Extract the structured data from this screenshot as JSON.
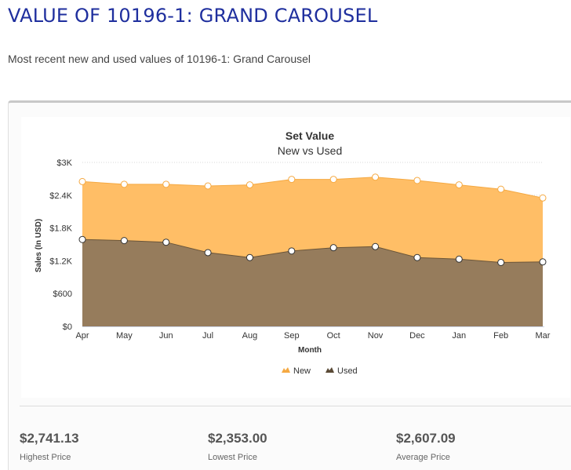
{
  "page": {
    "title": "VALUE OF 10196-1: GRAND CAROUSEL",
    "subtitle": "Most recent new and used values of 10196-1: Grand Carousel"
  },
  "stats": [
    {
      "value": "$2,741.13",
      "label": "Highest Price"
    },
    {
      "value": "$2,353.00",
      "label": "Lowest Price"
    },
    {
      "value": "$2,607.09",
      "label": "Average Price"
    }
  ],
  "colors": {
    "new": "#ffbe66",
    "used": "#967c5c",
    "new_line": "#f5a942",
    "used_line": "#6b5538",
    "grid": "#d8d8d8"
  },
  "chart_data": {
    "type": "area",
    "title": "Set Value",
    "subtitle": "New vs Used",
    "xlabel": "Month",
    "ylabel": "Sales (In USD)",
    "categories": [
      "Apr",
      "May",
      "Jun",
      "Jul",
      "Aug",
      "Sep",
      "Oct",
      "Nov",
      "Dec",
      "Jan",
      "Feb",
      "Mar"
    ],
    "y_ticks": [
      "$0",
      "$600",
      "$1.2K",
      "$1.8K",
      "$2.4K",
      "$3K"
    ],
    "ylim": [
      0,
      3000
    ],
    "grid": true,
    "legend_position": "bottom-center",
    "series": [
      {
        "name": "New",
        "values": [
          2650,
          2600,
          2600,
          2570,
          2590,
          2690,
          2690,
          2730,
          2670,
          2590,
          2510,
          2350
        ]
      },
      {
        "name": "Used",
        "values": [
          1590,
          1570,
          1540,
          1350,
          1260,
          1380,
          1440,
          1460,
          1260,
          1230,
          1170,
          1180
        ]
      }
    ]
  }
}
